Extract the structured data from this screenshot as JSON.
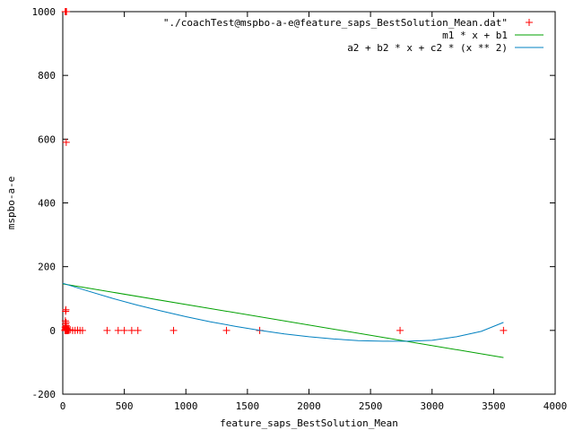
{
  "chart_data": {
    "type": "scatter",
    "title": "",
    "xlabel": "feature_saps_BestSolution_Mean",
    "ylabel": "mspbo-a-e",
    "xlim": [
      0,
      4000
    ],
    "ylim": [
      -200,
      1000
    ],
    "xticks": [
      0,
      500,
      1000,
      1500,
      2000,
      2500,
      3000,
      3500,
      4000
    ],
    "yticks": [
      -200,
      0,
      200,
      400,
      600,
      800,
      1000
    ],
    "xtick_labels": [
      "0",
      "500",
      "1000",
      "1500",
      "2000",
      "2500",
      "3000",
      "3500",
      "4000"
    ],
    "ytick_labels": [
      "-200",
      "0",
      "200",
      "400",
      "600",
      "800",
      "1000"
    ],
    "grid": false,
    "legend_position": "top-right",
    "series": [
      {
        "name": "\"./coachTest@mspbo-a-e@feature_saps_BestSolution_Mean.dat\"",
        "kind": "points",
        "marker": "plus",
        "color": "#ff0000",
        "x": [
          20,
          22,
          24,
          26,
          28,
          30,
          18,
          21,
          23,
          25,
          27,
          29,
          31,
          33,
          35,
          19,
          22,
          25,
          28,
          31,
          20,
          24,
          27,
          22,
          26,
          21,
          23,
          25,
          28,
          24,
          30,
          32,
          35,
          40,
          45,
          50,
          60,
          80,
          100,
          120,
          140,
          160,
          360,
          450,
          500,
          560,
          610,
          900,
          1330,
          1600,
          2740,
          3580
        ],
        "y": [
          1000,
          1000,
          1000,
          1000,
          1000,
          1000,
          0,
          0,
          0,
          0,
          0,
          0,
          0,
          0,
          0,
          2,
          3,
          4,
          5,
          6,
          10,
          12,
          15,
          20,
          25,
          30,
          60,
          65,
          590,
          8,
          2,
          1,
          3,
          0,
          1,
          0,
          2,
          0,
          0,
          1,
          0,
          0,
          0,
          0,
          0,
          0,
          0,
          0,
          0,
          0,
          0,
          0
        ]
      },
      {
        "name": "m1 * x + b1",
        "kind": "line",
        "color": "#00a000",
        "x": [
          0,
          3580
        ],
        "y": [
          146,
          -85
        ]
      },
      {
        "name": "a2 + b2 * x + c2 * (x ** 2)",
        "kind": "curve",
        "color": "#0080c0",
        "x": [
          0,
          200,
          400,
          600,
          800,
          1000,
          1200,
          1400,
          1600,
          1800,
          2000,
          2200,
          2400,
          2600,
          2800,
          3000,
          3200,
          3400,
          3580
        ],
        "y": [
          148,
          124,
          101,
          80,
          61,
          43,
          27,
          13,
          0,
          -11,
          -20,
          -27,
          -32,
          -34,
          -34,
          -31,
          -20,
          -3,
          25
        ]
      }
    ]
  }
}
